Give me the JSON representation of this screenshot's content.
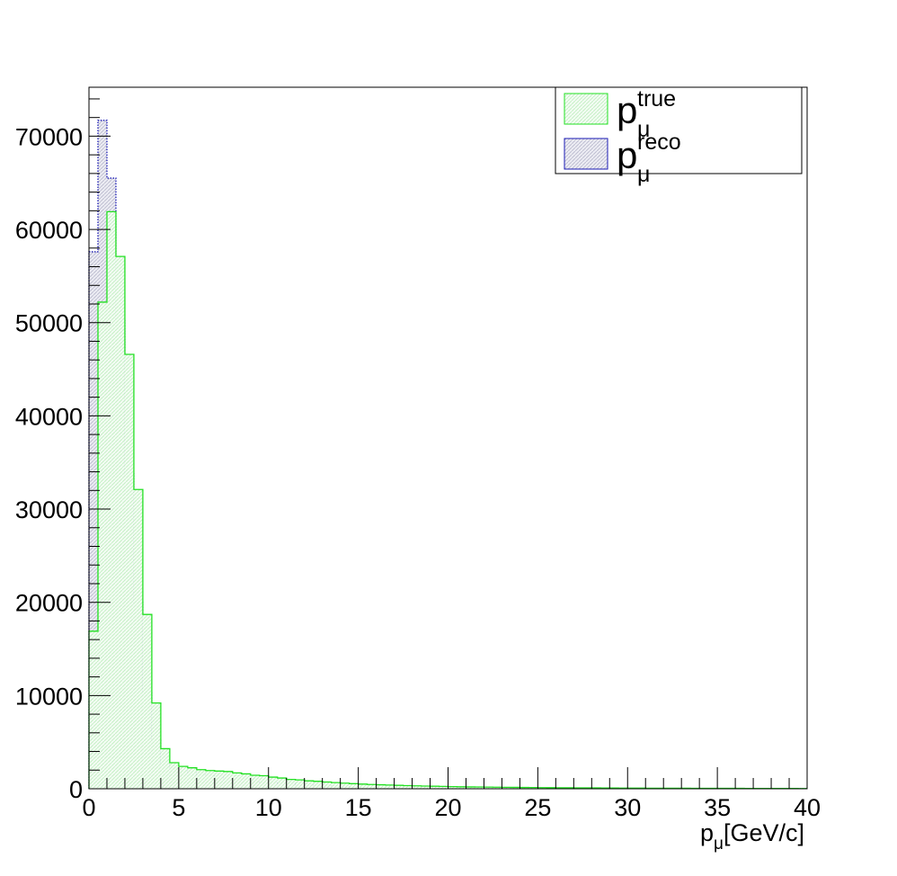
{
  "chart_data": {
    "type": "histogram",
    "title": "",
    "xlabel": {
      "main": "p",
      "sub": "μ",
      "rest": "[GeV/c]"
    },
    "ylabel": "",
    "xlim": [
      0,
      40
    ],
    "ylim": [
      0,
      75250
    ],
    "grid": false,
    "legend_position": "top-right",
    "x_ticks": [
      0,
      5,
      10,
      15,
      20,
      25,
      30,
      35,
      40
    ],
    "y_ticks": [
      0,
      10000,
      20000,
      30000,
      40000,
      50000,
      60000,
      70000
    ],
    "bin_edges_start": 0,
    "bin_width": 0.5,
    "series": [
      {
        "name": "p_mu_true",
        "legend_main": "p",
        "legend_sup": "true",
        "legend_sub": "μ",
        "color": "#22e022",
        "fill": "#eafaea",
        "values": [
          16900,
          52200,
          61900,
          57100,
          46600,
          32100,
          18700,
          9200,
          4300,
          2800,
          2400,
          2250,
          2050,
          1950,
          1900,
          1850,
          1700,
          1600,
          1450,
          1400,
          1250,
          1150,
          1000,
          950,
          850,
          800,
          720,
          660,
          600,
          550,
          500,
          460,
          430,
          400,
          370,
          340,
          310,
          290,
          270,
          250,
          230,
          210,
          200,
          190,
          180,
          170,
          160,
          150,
          140,
          130,
          120,
          115,
          110,
          105,
          100,
          95,
          90,
          85,
          80,
          75,
          70,
          65,
          62,
          60,
          58,
          55,
          52,
          50,
          48,
          46,
          44,
          42,
          40,
          38,
          36,
          34,
          32,
          30,
          28,
          26
        ]
      },
      {
        "name": "p_mu_reco",
        "legend_main": "p",
        "legend_sup": "reco",
        "legend_sub": "μ",
        "color": "#1a1ab4",
        "fill": "#e4e4ee",
        "values": [
          57600,
          71700,
          65500,
          50400,
          33800,
          20000,
          10300,
          5200,
          2700,
          2200,
          1950,
          1750,
          1550,
          1400,
          1250,
          1100,
          1000,
          900,
          800,
          720,
          650,
          590,
          540,
          490,
          440,
          400,
          360,
          330,
          300,
          270,
          245,
          225,
          205,
          190,
          175,
          160,
          148,
          136,
          125,
          115,
          106,
          98,
          90,
          84,
          78,
          72,
          67,
          62,
          58,
          54,
          50,
          47,
          44,
          41,
          38,
          36,
          34,
          32,
          30,
          28,
          26,
          25,
          24,
          23,
          22,
          21,
          20,
          19,
          18,
          17,
          16,
          15,
          14,
          13,
          12,
          11,
          10,
          10,
          9,
          9
        ]
      }
    ]
  }
}
